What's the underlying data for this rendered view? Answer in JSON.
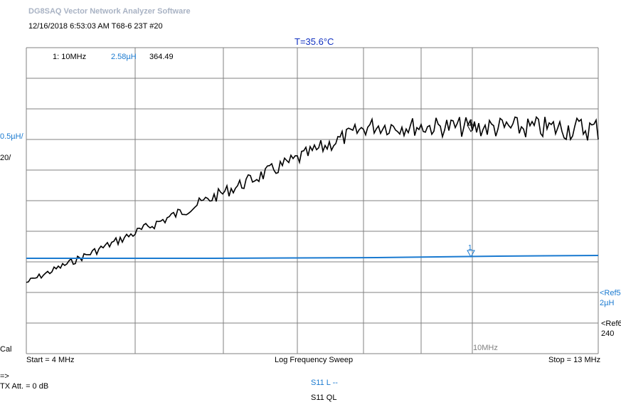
{
  "app_title": "DG8SAQ Vector Network Analyzer Software",
  "header_info": "12/16/2018   6:53:03 AM    T68-6 23T #20",
  "temperature": "T=35.6°C",
  "marker_readout": {
    "id": "1: 10MHz",
    "l_value": "2.58µH",
    "ql_value": "364.49"
  },
  "left_scales": {
    "l_scale": "0.5µH/",
    "ql_scale": "20/",
    "cal": "Cal"
  },
  "right_refs": {
    "l_ref_line1": "<Ref5",
    "l_ref_line2": "2µH",
    "ql_ref_line1": "<Ref6",
    "ql_ref_line2": "240"
  },
  "marker_freq_label": "10MHz",
  "marker_symbol": "1",
  "footer": {
    "start": "Start = 4 MHz",
    "sweep": "Log Frequency Sweep",
    "stop": "Stop = 13 MHz"
  },
  "arrow_label": "=>",
  "tx_att": "TX Att.  = 0 dB",
  "legend": {
    "trace1": "S11  L --",
    "trace2": "S11  QL"
  },
  "colors": {
    "l_trace": "#1a7ad0",
    "ql_trace": "#000000",
    "grid": "#808080",
    "title": "#a9b3c4",
    "temperature": "#1030c0"
  }
}
